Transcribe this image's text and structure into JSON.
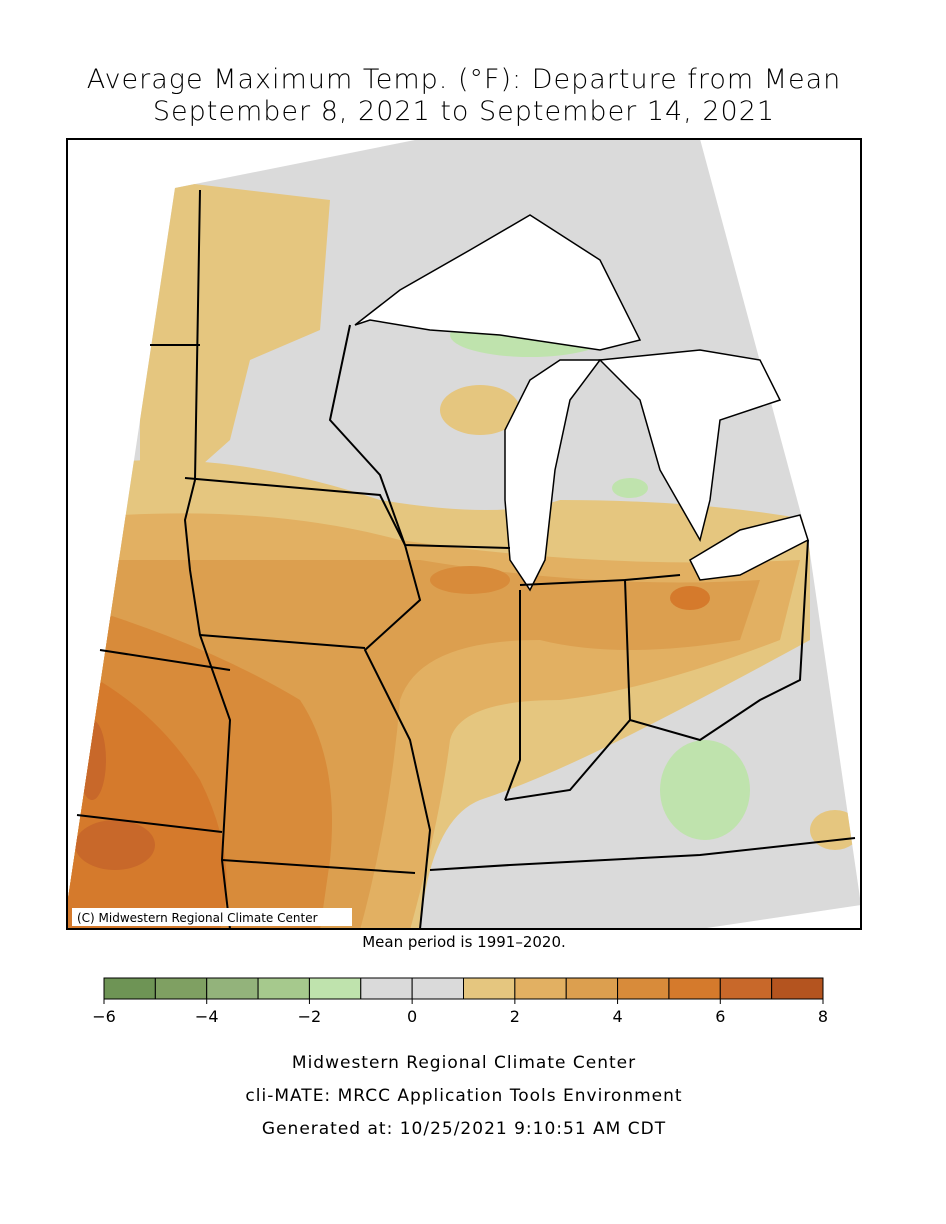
{
  "title": [
    "Average Maximum Temp. (°F): Departure from Mean",
    "September 8, 2021 to September 14, 2021"
  ],
  "map": {
    "credit": "(C) Midwestern Regional Climate Center"
  },
  "note": "Mean period is 1991–2020.",
  "colorbar": {
    "bins": [
      -6,
      -5,
      -4,
      -3,
      -2,
      -1,
      0,
      1,
      2,
      3,
      4,
      5,
      6,
      7,
      8
    ],
    "colors": [
      "#6e9455",
      "#7fa062",
      "#93b37b",
      "#a6c98d",
      "#bfe3ad",
      "#dadada",
      "#dadada",
      "#e5c67f",
      "#e2b062",
      "#dc9f4f",
      "#d88b3a",
      "#d57a2c",
      "#c8682a",
      "#b4541f"
    ],
    "ticks": [
      {
        "value": -6,
        "label": "−6"
      },
      {
        "value": -4,
        "label": "−4"
      },
      {
        "value": -2,
        "label": "−2"
      },
      0,
      2,
      4,
      6,
      8
    ]
  },
  "footer": [
    "Midwestern Regional Climate Center",
    "cli-MATE: MRCC Application Tools Environment",
    "Generated at: 10/25/2021 9:10:51 AM CDT"
  ]
}
